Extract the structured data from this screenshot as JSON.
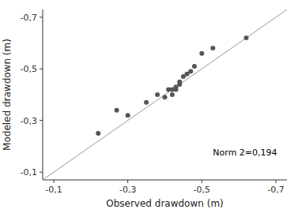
{
  "chart_data": {
    "type": "scatter",
    "x": [
      -0.22,
      -0.27,
      -0.3,
      -0.35,
      -0.38,
      -0.4,
      -0.41,
      -0.42,
      -0.42,
      -0.43,
      -0.43,
      -0.44,
      -0.44,
      -0.45,
      -0.46,
      -0.47,
      -0.48,
      -0.5,
      -0.53,
      -0.62
    ],
    "values": [
      -0.25,
      -0.34,
      -0.32,
      -0.37,
      -0.4,
      -0.39,
      -0.42,
      -0.4,
      -0.42,
      -0.42,
      -0.43,
      -0.44,
      -0.45,
      -0.47,
      -0.48,
      -0.49,
      -0.51,
      -0.56,
      -0.58,
      -0.62
    ],
    "color": "#555555",
    "xlabel": "Observed drawdown (m)",
    "ylabel": "Modeled drawdown (m)",
    "annotations": [
      {
        "text": "Norm 2=0,194",
        "x": -0.53,
        "y": -0.175
      }
    ],
    "xlim": [
      -0.07,
      -0.73
    ],
    "ylim": [
      -0.07,
      -0.73
    ],
    "xticks": [
      {
        "value": -0.1,
        "label": "-0,1"
      },
      {
        "value": -0.3,
        "label": "-0,3"
      },
      {
        "value": -0.5,
        "label": "-0,5"
      },
      {
        "value": -0.7,
        "label": "-0,7"
      }
    ],
    "yticks": [
      {
        "value": -0.1,
        "label": "-0,1"
      },
      {
        "value": -0.3,
        "label": "-0,3"
      },
      {
        "value": -0.5,
        "label": "-0,5"
      },
      {
        "value": -0.7,
        "label": "-0,7"
      }
    ]
  }
}
